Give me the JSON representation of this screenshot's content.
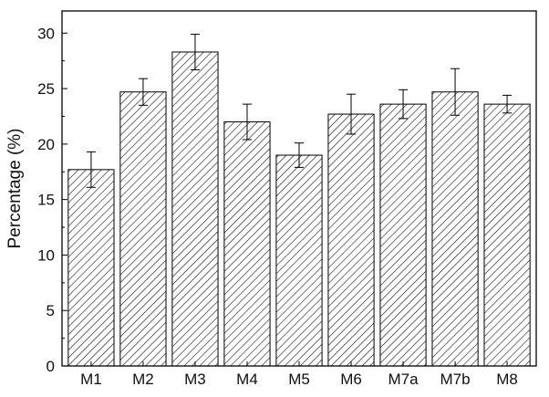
{
  "chart_data": {
    "type": "bar",
    "title": "",
    "xlabel": "",
    "ylabel": "Percentage (%)",
    "ylim": [
      0,
      32
    ],
    "yticks": [
      0,
      5,
      10,
      15,
      20,
      25,
      30
    ],
    "grid": false,
    "categories": [
      "M1",
      "M2",
      "M3",
      "M4",
      "M5",
      "M6",
      "M7a",
      "M7b",
      "M8"
    ],
    "values": [
      17.7,
      24.7,
      28.3,
      22.0,
      19.0,
      22.7,
      23.6,
      24.7,
      23.6
    ],
    "errors": [
      1.6,
      1.2,
      1.6,
      1.6,
      1.1,
      1.8,
      1.3,
      2.1,
      0.8
    ],
    "bar_fill": "hatched",
    "bar_color": "#000000"
  }
}
